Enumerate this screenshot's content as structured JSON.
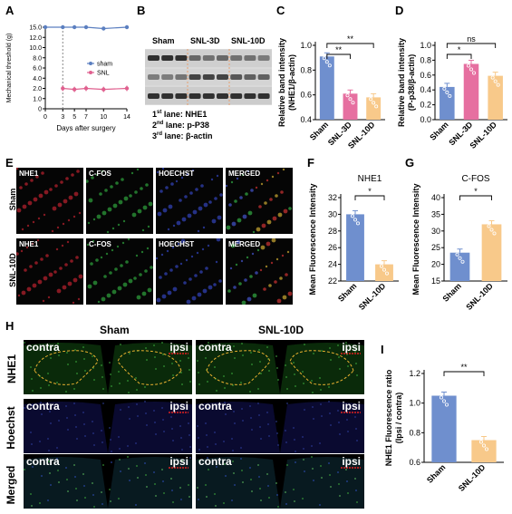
{
  "panels": {
    "A": "A",
    "B": "B",
    "C": "C",
    "D": "D",
    "E": "E",
    "F": "F",
    "G": "G",
    "H": "H",
    "I": "I"
  },
  "panelA": {
    "chart_data": {
      "type": "line",
      "xlabel": "Days after surgery",
      "ylabel": "Mechanical threshold (g)",
      "xticks": [
        "0",
        "3",
        "5",
        "7",
        "10",
        "14"
      ],
      "yticks": [
        "0",
        "1.0",
        "2.0",
        "4.0",
        "6.0",
        "8.0",
        "10.0",
        "12.0",
        "15.0"
      ],
      "surgery_day": 3,
      "series": [
        {
          "name": "sham",
          "color": "#5b7fc0",
          "x": [
            0,
            3,
            5,
            7,
            10,
            14
          ],
          "y": [
            15.0,
            15.0,
            15.0,
            15.0,
            14.6,
            15.0
          ]
        },
        {
          "name": "SNL",
          "color": "#e0608f",
          "x": [
            3,
            5,
            7,
            10,
            14
          ],
          "y": [
            2.0,
            1.9,
            2.0,
            1.9,
            2.0
          ]
        }
      ]
    }
  },
  "panelB": {
    "lanes": [
      "Sham",
      "SNL-3D",
      "SNL-10D"
    ],
    "legend": [
      {
        "num": "1",
        "sup": "st",
        "rest": " lane: NHE1"
      },
      {
        "num": "2",
        "sup": "nd",
        "rest": " lane: p-P38"
      },
      {
        "num": "3",
        "sup": "rd",
        "rest": " lane: β-actin"
      }
    ]
  },
  "panelC": {
    "chart_data": {
      "type": "bar",
      "ylabel": "Relative band intensity\n(NHE1/β-actin)",
      "categories": [
        "Sham",
        "SNL-3D",
        "SNL-10D"
      ],
      "values": [
        0.91,
        0.61,
        0.58
      ],
      "colors": [
        "#6f8fce",
        "#e66fa0",
        "#f8c98a"
      ],
      "ylim": [
        0.4,
        1.0
      ],
      "yticks": [
        "0.4",
        "0.6",
        "0.8",
        "1.0"
      ],
      "comparisons": [
        {
          "a": 0,
          "b": 1,
          "label": "**"
        },
        {
          "a": 0,
          "b": 2,
          "label": "**"
        }
      ]
    }
  },
  "panelD": {
    "chart_data": {
      "type": "bar",
      "ylabel": "Relative band intensity\n(P-p38/β-actin)",
      "categories": [
        "Sham",
        "SNL-3D",
        "SNL-10D"
      ],
      "values": [
        0.44,
        0.75,
        0.59
      ],
      "colors": [
        "#6f8fce",
        "#e66fa0",
        "#f8c98a"
      ],
      "ylim": [
        0.0,
        1.0
      ],
      "yticks": [
        "0.0",
        "0.2",
        "0.4",
        "0.6",
        "0.8",
        "1.0"
      ],
      "comparisons": [
        {
          "a": 0,
          "b": 1,
          "label": "*"
        },
        {
          "a": 0,
          "b": 2,
          "label": "ns"
        }
      ]
    }
  },
  "panelE": {
    "rows": [
      "Sham",
      "SNL-10D"
    ],
    "cols": [
      "NHE1",
      "C-FOS",
      "HOECHST",
      "MERGED"
    ]
  },
  "panelF": {
    "chart_data": {
      "type": "bar",
      "title": "NHE1",
      "ylabel": "Mean Fluorescence Intensity",
      "categories": [
        "Sham",
        "SNL-10D"
      ],
      "values": [
        30.0,
        24.0
      ],
      "colors": [
        "#6f8fce",
        "#f8c98a"
      ],
      "ylim": [
        22,
        32
      ],
      "yticks": [
        "22",
        "24",
        "26",
        "28",
        "30",
        "32"
      ],
      "comparisons": [
        {
          "a": 0,
          "b": 1,
          "label": "*"
        }
      ]
    }
  },
  "panelG": {
    "chart_data": {
      "type": "bar",
      "title": "C-FOS",
      "ylabel": "Mean Fluorescence Intensity",
      "categories": [
        "Sham",
        "SNL-10D"
      ],
      "values": [
        23.5,
        32.0
      ],
      "colors": [
        "#6f8fce",
        "#f8c98a"
      ],
      "ylim": [
        15,
        40
      ],
      "yticks": [
        "15",
        "20",
        "25",
        "30",
        "35",
        "40"
      ],
      "comparisons": [
        {
          "a": 0,
          "b": 1,
          "label": "*"
        }
      ]
    }
  },
  "panelH": {
    "col_titles": [
      "Sham",
      "SNL-10D"
    ],
    "row_labels": [
      "NHE1",
      "Hoechst",
      "Merged"
    ],
    "contra": "contra",
    "ipsi": "ipsi"
  },
  "panelI": {
    "chart_data": {
      "type": "bar",
      "ylabel": "NHE1 Fluorescence ratio\n(Ipsi / contra)",
      "categories": [
        "Sham",
        "SNL-10D"
      ],
      "values": [
        1.05,
        0.75
      ],
      "colors": [
        "#6f8fce",
        "#f8c98a"
      ],
      "ylim": [
        0.6,
        1.2
      ],
      "yticks": [
        "0.6",
        "0.8",
        "1.0",
        "1.2"
      ],
      "comparisons": [
        {
          "a": 0,
          "b": 1,
          "label": "**"
        }
      ]
    }
  }
}
